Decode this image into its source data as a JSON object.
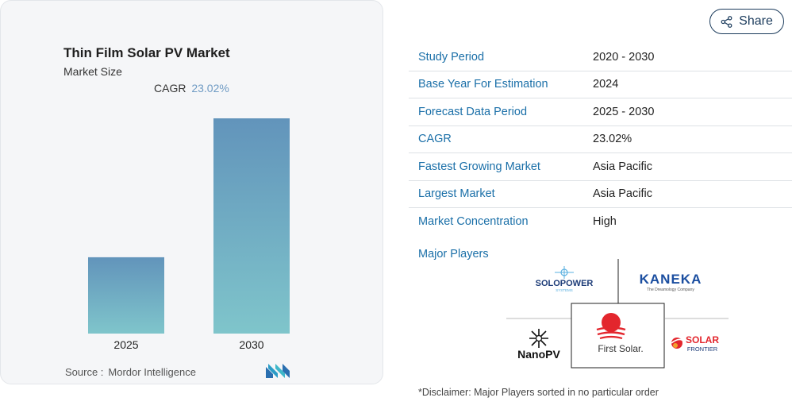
{
  "card": {
    "title": "Thin Film Solar PV Market",
    "subtitle": "Market Size",
    "cagr_label": "CAGR",
    "cagr_value": "23.02%",
    "source_label": "Source :",
    "source_value": "Mordor Intelligence"
  },
  "chart_data": {
    "type": "bar",
    "categories": [
      "2025",
      "2030"
    ],
    "values": [
      1,
      2.82
    ],
    "title": "",
    "xlabel": "",
    "ylabel": "",
    "grid": false,
    "colors": {
      "top": "#6294bb",
      "bottom": "#7fc5cb"
    }
  },
  "share": {
    "label": "Share",
    "icon": "share-icon"
  },
  "info": {
    "rows": [
      {
        "label": "Study Period",
        "value": "2020 - 2030"
      },
      {
        "label": "Base Year For Estimation",
        "value": "2024"
      },
      {
        "label": "Forecast Data Period",
        "value": "2025 - 2030"
      },
      {
        "label": "CAGR",
        "value": "23.02%"
      },
      {
        "label": "Fastest Growing Market",
        "value": "Asia Pacific"
      },
      {
        "label": "Largest Market",
        "value": "Asia Pacific"
      },
      {
        "label": "Market Concentration",
        "value": "High"
      }
    ]
  },
  "players": {
    "title": "Major Players",
    "solopower": {
      "name": "SOLOPOWER",
      "sub": "SYSTEMS"
    },
    "kaneka": {
      "name": "KANEKA",
      "tagline": "The Dreamology Company"
    },
    "nanopv": {
      "name": "NanoPV"
    },
    "firstsolar": {
      "name": "First Solar."
    },
    "solarfrontier": {
      "name": "SOLAR",
      "sub": "FRONTIER"
    }
  },
  "disclaimer": "*Disclaimer: Major Players sorted in no particular order",
  "colors": {
    "accent": "#1a6fa8",
    "share_border": "#1b3b5c"
  }
}
